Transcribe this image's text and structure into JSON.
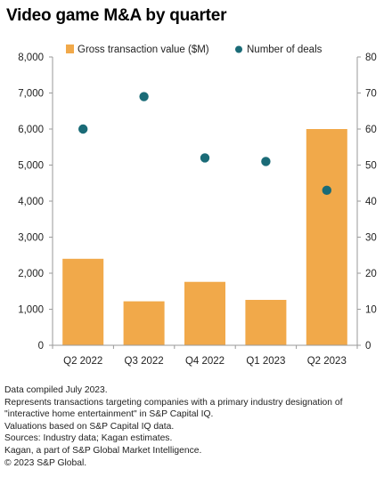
{
  "title": "Video game M&A by quarter",
  "chart_data": {
    "type": "bar",
    "categories": [
      "Q2 2022",
      "Q3 2022",
      "Q4 2022",
      "Q1 2023",
      "Q2 2023"
    ],
    "series": [
      {
        "name": "Gross transaction value ($M)",
        "kind": "bar",
        "axis": "left",
        "color": "#f1a94a",
        "values": [
          2400,
          1220,
          1760,
          1260,
          6000
        ]
      },
      {
        "name": "Number of deals",
        "kind": "scatter",
        "axis": "right",
        "color": "#1a6b77",
        "values": [
          60,
          69,
          52,
          51,
          43
        ]
      }
    ],
    "ylim_left": [
      0,
      8000
    ],
    "ylim_right": [
      0,
      80
    ],
    "left_ticks": [
      "0",
      "1,000",
      "2,000",
      "3,000",
      "4,000",
      "5,000",
      "6,000",
      "7,000",
      "8,000"
    ],
    "right_ticks": [
      "0",
      "10",
      "20",
      "30",
      "40",
      "50",
      "60",
      "70",
      "80"
    ],
    "legend": "top",
    "grid": false
  },
  "footnotes": [
    "Data compiled July 2023.",
    "Represents transactions targeting companies with a primary industry designation of \"interactive home entertainment\" in S&P Capital IQ.",
    "Valuations based on S&P Capital IQ data.",
    "Sources: Industry data; Kagan estimates.",
    "Kagan, a part of S&P Global Market Intelligence.",
    "© 2023 S&P Global."
  ]
}
